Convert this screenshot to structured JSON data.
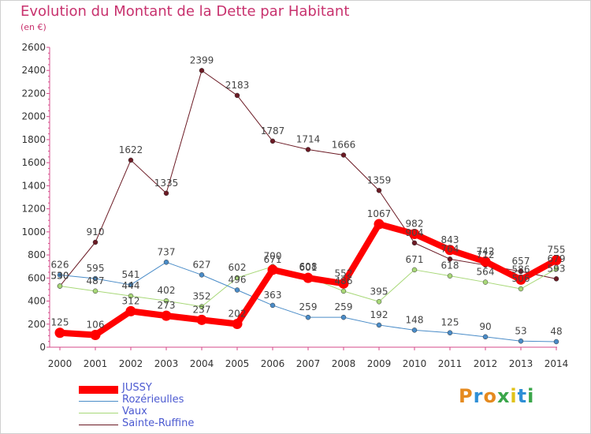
{
  "title": "Evolution du Montant de la Dette par Habitant",
  "subtitle": "(en €)",
  "logo": {
    "text": "Proxiti",
    "colors": [
      "#e58a1f",
      "#2f8fd6",
      "#e58a1f",
      "#3aa64a",
      "#e0c21a",
      "#2f8fd6",
      "#3aa64a"
    ]
  },
  "chart_data": {
    "type": "line",
    "title": "Evolution du Montant de la Dette par Habitant",
    "ylabel": "(en €)",
    "xlabel": "",
    "ylim": [
      0,
      2600
    ],
    "yticks": [
      0,
      200,
      400,
      600,
      800,
      1000,
      1200,
      1400,
      1600,
      1800,
      2000,
      2200,
      2400,
      2600
    ],
    "grid": false,
    "legend_position": "bottom-left",
    "categories": [
      "2000",
      "2001",
      "2002",
      "2003",
      "2004",
      "2005",
      "2006",
      "2007",
      "2008",
      "2009",
      "2010",
      "2011",
      "2012",
      "2013",
      "2014"
    ],
    "series": [
      {
        "name": "Sainte-Ruffine",
        "color": "#6b1a24",
        "width": 1,
        "values": [
          530,
          910,
          1622,
          1335,
          2399,
          2183,
          1787,
          1714,
          1666,
          1359,
          904,
          764,
          712,
          657,
          593
        ]
      },
      {
        "name": "Vaux",
        "color": "#a8d878",
        "width": 1,
        "values": [
          530,
          487,
          444,
          402,
          352,
          602,
          700,
          608,
          486,
          395,
          671,
          618,
          564,
          506,
          679
        ]
      },
      {
        "name": "Rozérieulles",
        "color": "#4a8cc8",
        "width": 1,
        "values": [
          626,
          595,
          541,
          737,
          627,
          496,
          363,
          259,
          259,
          192,
          148,
          125,
          90,
          53,
          48
        ]
      },
      {
        "name": "JUSSY",
        "color": "#ff0000",
        "width": 8,
        "values": [
          125,
          106,
          312,
          273,
          237,
          202,
          671,
          601,
          552,
          1067,
          982,
          843,
          742,
          586,
          755
        ]
      }
    ]
  }
}
